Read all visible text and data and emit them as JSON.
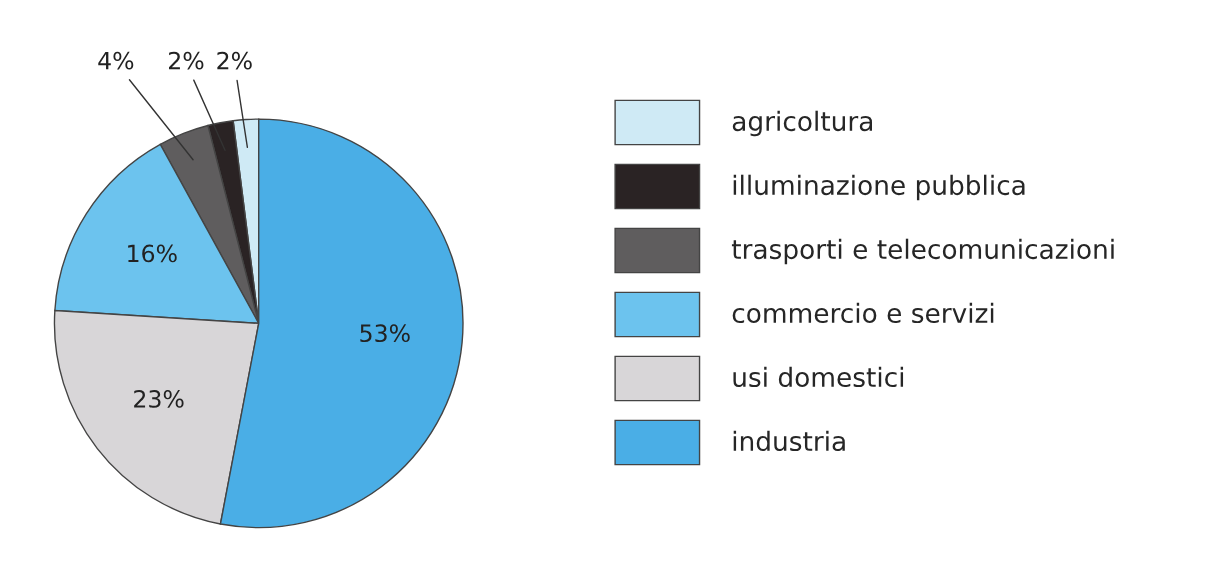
{
  "chart_data": {
    "type": "pie",
    "categories": [
      "agricoltura",
      "illuminazione pubblica",
      "trasporti e telecomunicazioni",
      "commercio e servizi",
      "usi domestici",
      "industria"
    ],
    "values": [
      2,
      2,
      4,
      16,
      23,
      53
    ],
    "value_labels": [
      "2%",
      "2%",
      "4%",
      "16%",
      "23%",
      "53%"
    ],
    "colors": [
      "#cfeaf5",
      "#2a2324",
      "#5f5d5e",
      "#6cc3ee",
      "#d8d6d8",
      "#4aaee6"
    ],
    "legend": "right"
  }
}
